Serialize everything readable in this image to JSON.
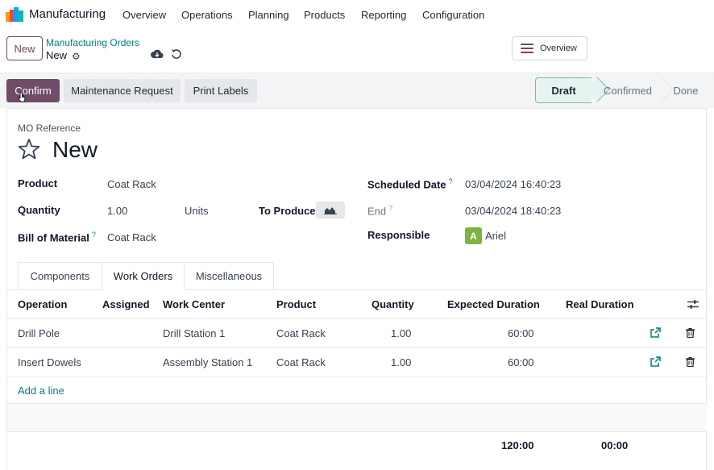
{
  "navbar": {
    "app_name": "Manufacturing",
    "menu": [
      "Overview",
      "Operations",
      "Planning",
      "Products",
      "Reporting",
      "Configuration"
    ]
  },
  "control_panel": {
    "new_button": "New",
    "breadcrumb_parent": "Manufacturing Orders",
    "breadcrumb_current": "New",
    "overview_button": "Overview"
  },
  "status_actions": {
    "confirm": "Confirm",
    "maintenance": "Maintenance Request",
    "print_labels": "Print Labels"
  },
  "stages": {
    "items": [
      "Draft",
      "Confirmed",
      "Done"
    ],
    "active": "Draft"
  },
  "form": {
    "ref_label": "MO Reference",
    "title": "New",
    "product_label": "Product",
    "product_value": "Coat Rack",
    "quantity_label": "Quantity",
    "quantity_value": "1.00",
    "quantity_uom": "Units",
    "to_produce_label": "To Produce",
    "bom_label": "Bill of Material",
    "bom_help": "?",
    "bom_value": "Coat Rack",
    "scheduled_label": "Scheduled Date",
    "scheduled_help": "?",
    "scheduled_value": "03/04/2024 16:40:23",
    "end_label": "End",
    "end_help": "?",
    "end_value": "03/04/2024 18:40:23",
    "responsible_label": "Responsible",
    "responsible_initial": "A",
    "responsible_value": "Ariel"
  },
  "tabs": [
    "Components",
    "Work Orders",
    "Miscellaneous"
  ],
  "active_tab": "Work Orders",
  "table": {
    "headers": [
      "Operation",
      "Assigned",
      "Work Center",
      "Product",
      "Quantity",
      "Expected Duration",
      "Real Duration"
    ],
    "rows": [
      {
        "operation": "Drill Pole",
        "assigned": "",
        "work_center": "Drill Station 1",
        "product": "Coat Rack",
        "quantity": "1.00",
        "expected": "60:00",
        "real": ""
      },
      {
        "operation": "Insert Dowels",
        "assigned": "",
        "work_center": "Assembly Station 1",
        "product": "Coat Rack",
        "quantity": "1.00",
        "expected": "60:00",
        "real": ""
      }
    ],
    "add_line": "Add a line",
    "total_expected": "120:00",
    "total_real": "00:00"
  },
  "colors": {
    "brand": "#714b67",
    "link": "#017e84",
    "avatar": "#7cb342"
  }
}
